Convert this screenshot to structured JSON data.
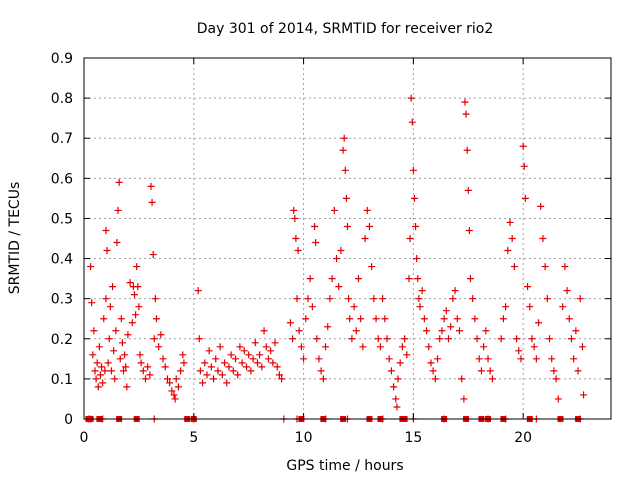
{
  "chart_data": {
    "type": "scatter",
    "title": "Day 301 of 2014, SRMTID for receiver rio2",
    "xlabel": "GPS time / hours",
    "ylabel": "SRMTID / TECUs",
    "xlim": [
      0,
      24
    ],
    "ylim": [
      0,
      0.9
    ],
    "xticks": [
      0,
      5,
      10,
      15,
      20
    ],
    "xtick_labels": [
      "0",
      "5",
      "10",
      "15",
      "20"
    ],
    "yticks": [
      0,
      0.1,
      0.2,
      0.3,
      0.4,
      0.5,
      0.6,
      0.7,
      0.8,
      0.9
    ],
    "ytick_labels": [
      "0",
      "0.1",
      "0.2",
      "0.3",
      "0.4",
      "0.5",
      "0.6",
      "0.7",
      "0.8",
      "0.9"
    ],
    "grid": true,
    "marker": "plus",
    "series": [
      {
        "name": "SRMTID",
        "color": "#e00000",
        "points": [
          [
            0.2,
            0.0
          ],
          [
            0.3,
            0.0
          ],
          [
            0.3,
            0.38
          ],
          [
            0.35,
            0.29
          ],
          [
            0.4,
            0.16
          ],
          [
            0.45,
            0.22
          ],
          [
            0.5,
            0.12
          ],
          [
            0.55,
            0.1
          ],
          [
            0.6,
            0.14
          ],
          [
            0.65,
            0.08
          ],
          [
            0.7,
            0.18
          ],
          [
            0.75,
            0.11
          ],
          [
            0.8,
            0.13
          ],
          [
            0.85,
            0.09
          ],
          [
            0.9,
            0.25
          ],
          [
            0.95,
            0.12
          ],
          [
            1.0,
            0.3
          ],
          [
            1.0,
            0.47
          ],
          [
            1.05,
            0.42
          ],
          [
            1.1,
            0.14
          ],
          [
            1.15,
            0.2
          ],
          [
            1.2,
            0.28
          ],
          [
            1.25,
            0.12
          ],
          [
            1.3,
            0.33
          ],
          [
            1.35,
            0.17
          ],
          [
            1.4,
            0.1
          ],
          [
            1.45,
            0.22
          ],
          [
            1.5,
            0.44
          ],
          [
            1.55,
            0.52
          ],
          [
            1.6,
            0.59
          ],
          [
            1.65,
            0.15
          ],
          [
            1.7,
            0.25
          ],
          [
            1.75,
            0.19
          ],
          [
            1.8,
            0.12
          ],
          [
            1.85,
            0.16
          ],
          [
            1.9,
            0.13
          ],
          [
            1.95,
            0.08
          ],
          [
            2.0,
            0.21
          ],
          [
            2.1,
            0.34
          ],
          [
            2.2,
            0.24
          ],
          [
            2.25,
            0.33
          ],
          [
            2.3,
            0.31
          ],
          [
            2.35,
            0.26
          ],
          [
            2.4,
            0.38
          ],
          [
            2.45,
            0.33
          ],
          [
            2.5,
            0.28
          ],
          [
            2.55,
            0.16
          ],
          [
            2.6,
            0.14
          ],
          [
            2.7,
            0.12
          ],
          [
            2.8,
            0.1
          ],
          [
            2.9,
            0.13
          ],
          [
            3.0,
            0.11
          ],
          [
            3.05,
            0.58
          ],
          [
            3.1,
            0.54
          ],
          [
            3.15,
            0.41
          ],
          [
            3.2,
            0.2
          ],
          [
            3.25,
            0.3
          ],
          [
            3.3,
            0.25
          ],
          [
            3.4,
            0.18
          ],
          [
            3.5,
            0.21
          ],
          [
            3.6,
            0.15
          ],
          [
            3.7,
            0.13
          ],
          [
            3.8,
            0.1
          ],
          [
            3.9,
            0.09
          ],
          [
            4.0,
            0.07
          ],
          [
            4.1,
            0.06
          ],
          [
            4.15,
            0.05
          ],
          [
            4.2,
            0.1
          ],
          [
            4.3,
            0.08
          ],
          [
            4.4,
            0.12
          ],
          [
            4.5,
            0.16
          ],
          [
            4.55,
            0.14
          ],
          [
            5.0,
            0.0
          ],
          [
            5.2,
            0.32
          ],
          [
            5.25,
            0.2
          ],
          [
            5.3,
            0.12
          ],
          [
            5.4,
            0.09
          ],
          [
            5.5,
            0.14
          ],
          [
            5.6,
            0.11
          ],
          [
            5.7,
            0.17
          ],
          [
            5.8,
            0.13
          ],
          [
            5.9,
            0.1
          ],
          [
            6.0,
            0.15
          ],
          [
            6.1,
            0.12
          ],
          [
            6.2,
            0.18
          ],
          [
            6.3,
            0.11
          ],
          [
            6.4,
            0.14
          ],
          [
            6.5,
            0.09
          ],
          [
            6.6,
            0.13
          ],
          [
            6.7,
            0.16
          ],
          [
            6.8,
            0.12
          ],
          [
            6.9,
            0.15
          ],
          [
            7.0,
            0.11
          ],
          [
            7.1,
            0.18
          ],
          [
            7.2,
            0.14
          ],
          [
            7.3,
            0.17
          ],
          [
            7.4,
            0.13
          ],
          [
            7.5,
            0.16
          ],
          [
            7.6,
            0.12
          ],
          [
            7.7,
            0.15
          ],
          [
            7.8,
            0.19
          ],
          [
            7.9,
            0.14
          ],
          [
            8.0,
            0.16
          ],
          [
            8.1,
            0.13
          ],
          [
            8.2,
            0.22
          ],
          [
            8.3,
            0.18
          ],
          [
            8.4,
            0.15
          ],
          [
            8.5,
            0.17
          ],
          [
            8.6,
            0.14
          ],
          [
            8.7,
            0.19
          ],
          [
            8.8,
            0.13
          ],
          [
            8.9,
            0.11
          ],
          [
            9.0,
            0.1
          ],
          [
            9.1,
            0.0
          ],
          [
            9.4,
            0.24
          ],
          [
            9.5,
            0.2
          ],
          [
            9.55,
            0.52
          ],
          [
            9.6,
            0.5
          ],
          [
            9.65,
            0.45
          ],
          [
            9.7,
            0.3
          ],
          [
            9.75,
            0.42
          ],
          [
            9.8,
            0.22
          ],
          [
            9.9,
            0.18
          ],
          [
            10.0,
            0.15
          ],
          [
            10.1,
            0.25
          ],
          [
            10.2,
            0.3
          ],
          [
            10.3,
            0.35
          ],
          [
            10.4,
            0.28
          ],
          [
            10.5,
            0.48
          ],
          [
            10.55,
            0.44
          ],
          [
            10.6,
            0.2
          ],
          [
            10.7,
            0.15
          ],
          [
            10.8,
            0.12
          ],
          [
            10.9,
            0.1
          ],
          [
            11.0,
            0.18
          ],
          [
            11.1,
            0.23
          ],
          [
            11.2,
            0.3
          ],
          [
            11.3,
            0.35
          ],
          [
            11.4,
            0.52
          ],
          [
            11.5,
            0.4
          ],
          [
            11.6,
            0.33
          ],
          [
            11.7,
            0.42
          ],
          [
            11.8,
            0.67
          ],
          [
            11.85,
            0.7
          ],
          [
            11.9,
            0.62
          ],
          [
            11.95,
            0.55
          ],
          [
            12.0,
            0.48
          ],
          [
            12.05,
            0.3
          ],
          [
            12.1,
            0.25
          ],
          [
            12.2,
            0.2
          ],
          [
            12.3,
            0.28
          ],
          [
            12.4,
            0.22
          ],
          [
            12.5,
            0.35
          ],
          [
            12.6,
            0.25
          ],
          [
            12.7,
            0.18
          ],
          [
            12.8,
            0.45
          ],
          [
            12.9,
            0.52
          ],
          [
            13.0,
            0.48
          ],
          [
            13.1,
            0.38
          ],
          [
            13.2,
            0.3
          ],
          [
            13.3,
            0.25
          ],
          [
            13.4,
            0.2
          ],
          [
            13.5,
            0.18
          ],
          [
            13.6,
            0.3
          ],
          [
            13.7,
            0.25
          ],
          [
            13.8,
            0.2
          ],
          [
            13.9,
            0.15
          ],
          [
            14.0,
            0.12
          ],
          [
            14.1,
            0.08
          ],
          [
            14.2,
            0.05
          ],
          [
            14.25,
            0.03
          ],
          [
            14.3,
            0.1
          ],
          [
            14.4,
            0.14
          ],
          [
            14.5,
            0.18
          ],
          [
            14.6,
            0.2
          ],
          [
            14.7,
            0.16
          ],
          [
            14.8,
            0.35
          ],
          [
            14.85,
            0.45
          ],
          [
            14.9,
            0.8
          ],
          [
            14.95,
            0.74
          ],
          [
            15.0,
            0.62
          ],
          [
            15.05,
            0.55
          ],
          [
            15.1,
            0.48
          ],
          [
            15.15,
            0.4
          ],
          [
            15.2,
            0.35
          ],
          [
            15.25,
            0.3
          ],
          [
            15.3,
            0.28
          ],
          [
            15.4,
            0.32
          ],
          [
            15.5,
            0.25
          ],
          [
            15.6,
            0.22
          ],
          [
            15.7,
            0.18
          ],
          [
            15.8,
            0.14
          ],
          [
            15.9,
            0.12
          ],
          [
            16.0,
            0.1
          ],
          [
            16.1,
            0.15
          ],
          [
            16.2,
            0.2
          ],
          [
            16.3,
            0.22
          ],
          [
            16.4,
            0.25
          ],
          [
            16.5,
            0.27
          ],
          [
            16.6,
            0.2
          ],
          [
            16.7,
            0.23
          ],
          [
            16.8,
            0.3
          ],
          [
            16.9,
            0.32
          ],
          [
            17.0,
            0.25
          ],
          [
            17.1,
            0.22
          ],
          [
            17.2,
            0.1
          ],
          [
            17.3,
            0.05
          ],
          [
            17.35,
            0.79
          ],
          [
            17.4,
            0.76
          ],
          [
            17.45,
            0.67
          ],
          [
            17.5,
            0.57
          ],
          [
            17.55,
            0.47
          ],
          [
            17.6,
            0.35
          ],
          [
            17.7,
            0.3
          ],
          [
            17.8,
            0.25
          ],
          [
            17.9,
            0.2
          ],
          [
            18.0,
            0.15
          ],
          [
            18.1,
            0.12
          ],
          [
            18.2,
            0.18
          ],
          [
            18.3,
            0.22
          ],
          [
            18.4,
            0.15
          ],
          [
            18.5,
            0.12
          ],
          [
            18.6,
            0.1
          ],
          [
            19.0,
            0.2
          ],
          [
            19.1,
            0.25
          ],
          [
            19.2,
            0.28
          ],
          [
            19.3,
            0.42
          ],
          [
            19.4,
            0.49
          ],
          [
            19.5,
            0.45
          ],
          [
            19.6,
            0.38
          ],
          [
            19.7,
            0.2
          ],
          [
            19.8,
            0.17
          ],
          [
            19.9,
            0.15
          ],
          [
            20.0,
            0.68
          ],
          [
            20.05,
            0.63
          ],
          [
            20.1,
            0.55
          ],
          [
            20.2,
            0.33
          ],
          [
            20.3,
            0.28
          ],
          [
            20.4,
            0.2
          ],
          [
            20.5,
            0.18
          ],
          [
            20.6,
            0.15
          ],
          [
            20.7,
            0.24
          ],
          [
            20.8,
            0.53
          ],
          [
            20.9,
            0.45
          ],
          [
            21.0,
            0.38
          ],
          [
            21.1,
            0.3
          ],
          [
            21.2,
            0.2
          ],
          [
            21.3,
            0.15
          ],
          [
            21.4,
            0.12
          ],
          [
            21.5,
            0.1
          ],
          [
            21.6,
            0.05
          ],
          [
            21.8,
            0.28
          ],
          [
            21.9,
            0.38
          ],
          [
            22.0,
            0.32
          ],
          [
            22.1,
            0.25
          ],
          [
            22.2,
            0.2
          ],
          [
            22.3,
            0.15
          ],
          [
            22.4,
            0.22
          ],
          [
            22.5,
            0.12
          ],
          [
            22.6,
            0.3
          ],
          [
            22.7,
            0.18
          ],
          [
            22.75,
            0.06
          ],
          [
            0.85,
            0.0
          ],
          [
            3.2,
            0.0
          ],
          [
            9.7,
            0.0
          ],
          [
            11.0,
            0.0
          ],
          [
            12.0,
            0.0
          ],
          [
            13.6,
            0.0
          ],
          [
            15.0,
            0.0
          ],
          [
            16.4,
            0.0
          ],
          [
            18.4,
            0.0
          ],
          [
            19.2,
            0.0
          ],
          [
            20.6,
            0.0
          ],
          [
            22.6,
            0.0
          ]
        ]
      }
    ],
    "baseline_markers": [
      0.2,
      0.25,
      0.3,
      0.7,
      1.6,
      2.4,
      4.7,
      5.0,
      9.9,
      10.9,
      11.8,
      13.0,
      13.5,
      14.5,
      14.6,
      16.4,
      17.4,
      18.1,
      18.4,
      19.1,
      20.3,
      21.7,
      22.5
    ]
  }
}
